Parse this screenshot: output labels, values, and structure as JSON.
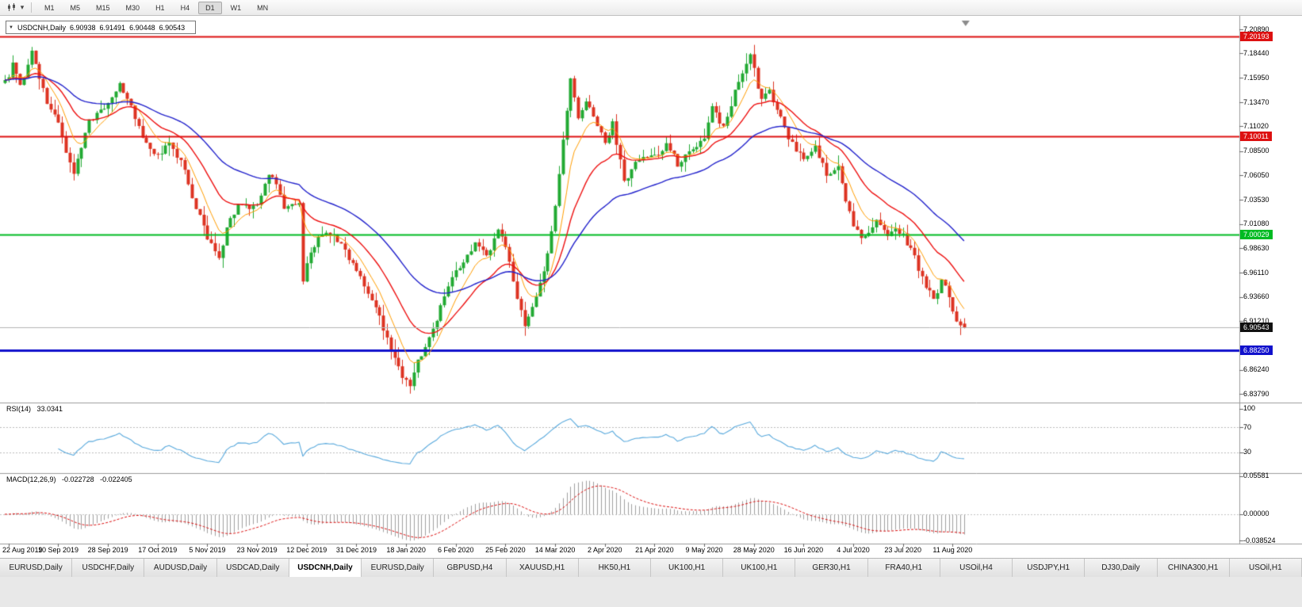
{
  "toolbar": {
    "timeframes": [
      "M1",
      "M5",
      "M15",
      "M30",
      "H1",
      "H4",
      "D1",
      "W1",
      "MN"
    ],
    "active_timeframe": "D1"
  },
  "chart": {
    "title": {
      "symbol": "USDCNH,Daily",
      "open": "6.90938",
      "high": "6.91491",
      "low": "6.90448",
      "close": "6.90543"
    },
    "price_axis": {
      "ticks": [
        "7.20890",
        "7.18440",
        "7.15950",
        "7.13470",
        "7.11020",
        "7.08500",
        "7.06050",
        "7.03530",
        "7.01080",
        "6.98630",
        "6.96110",
        "6.93660",
        "6.91210",
        "6.86240",
        "6.83790"
      ],
      "markers": [
        {
          "value": "7.20193",
          "bg": "#dd1111",
          "fg": "#ffffff"
        },
        {
          "value": "7.10011",
          "bg": "#dd1111",
          "fg": "#ffffff"
        },
        {
          "value": "7.00029",
          "bg": "#00bb22",
          "fg": "#ffffff"
        },
        {
          "value": "6.90543",
          "bg": "#111111",
          "fg": "#ffffff"
        },
        {
          "value": "6.88250",
          "bg": "#1111cc",
          "fg": "#ffffff"
        }
      ]
    },
    "time_axis": {
      "labels": [
        "22 Aug 2019",
        "10 Sep 2019",
        "28 Sep 2019",
        "17 Oct 2019",
        "5 Nov 2019",
        "23 Nov 2019",
        "12 Dec 2019",
        "31 Dec 2019",
        "18 Jan 2020",
        "6 Feb 2020",
        "25 Feb 2020",
        "14 Mar 2020",
        "2 Apr 2020",
        "21 Apr 2020",
        "9 May 2020",
        "28 May 2020",
        "16 Jun 2020",
        "4 Jul 2020",
        "23 Jul 2020",
        "11 Aug 2020"
      ],
      "first_label_candle": 1,
      "label_step": 13
    },
    "rsi_panel": {
      "label": "RSI(14)",
      "value": "33.0341",
      "scale": [
        "100",
        "70",
        "30"
      ]
    },
    "macd_panel": {
      "label": "MACD(12,26,9)",
      "value_main": "-0.022728",
      "value_signal": "-0.022405",
      "scale": [
        "0.05581",
        "0.00000",
        "-0.038524"
      ]
    }
  },
  "chart_data": {
    "type": "candlestick",
    "symbol": "USDCNH",
    "timeframe": "Daily",
    "ylim": [
      6.8379,
      7.2089
    ],
    "candle_count": 252,
    "last_candle": {
      "open": 6.90938,
      "high": 6.91491,
      "low": 6.90448,
      "close": 6.90543
    },
    "price_waypoints": [
      [
        0,
        7.155
      ],
      [
        2,
        7.172
      ],
      [
        4,
        7.15
      ],
      [
        7,
        7.188
      ],
      [
        9,
        7.16
      ],
      [
        11,
        7.135
      ],
      [
        14,
        7.115
      ],
      [
        16,
        7.08
      ],
      [
        18,
        7.065
      ],
      [
        20,
        7.09
      ],
      [
        22,
        7.115
      ],
      [
        25,
        7.125
      ],
      [
        27,
        7.135
      ],
      [
        30,
        7.151
      ],
      [
        33,
        7.13
      ],
      [
        36,
        7.1
      ],
      [
        40,
        7.08
      ],
      [
        43,
        7.094
      ],
      [
        46,
        7.075
      ],
      [
        49,
        7.04
      ],
      [
        53,
        6.995
      ],
      [
        56,
        6.978
      ],
      [
        58,
        7.005
      ],
      [
        61,
        7.03
      ],
      [
        64,
        7.025
      ],
      [
        66,
        7.032
      ],
      [
        69,
        7.062
      ],
      [
        71,
        7.05
      ],
      [
        73,
        7.028
      ],
      [
        77,
        7.035
      ],
      [
        78,
        6.955
      ],
      [
        80,
        6.982
      ],
      [
        83,
        7.002
      ],
      [
        86,
        6.998
      ],
      [
        89,
        6.985
      ],
      [
        92,
        6.962
      ],
      [
        95,
        6.94
      ],
      [
        98,
        6.915
      ],
      [
        100,
        6.895
      ],
      [
        102,
        6.872
      ],
      [
        104,
        6.855
      ],
      [
        106,
        6.848
      ],
      [
        108,
        6.87
      ],
      [
        111,
        6.895
      ],
      [
        114,
        6.925
      ],
      [
        117,
        6.955
      ],
      [
        120,
        6.975
      ],
      [
        123,
        6.992
      ],
      [
        126,
        6.978
      ],
      [
        129,
        7.002
      ],
      [
        131,
        6.988
      ],
      [
        133,
        6.952
      ],
      [
        136,
        6.905
      ],
      [
        138,
        6.928
      ],
      [
        141,
        6.962
      ],
      [
        143,
        7.0
      ],
      [
        145,
        7.065
      ],
      [
        147,
        7.125
      ],
      [
        148,
        7.158
      ],
      [
        150,
        7.115
      ],
      [
        152,
        7.135
      ],
      [
        154,
        7.12
      ],
      [
        157,
        7.096
      ],
      [
        159,
        7.112
      ],
      [
        162,
        7.055
      ],
      [
        165,
        7.072
      ],
      [
        168,
        7.082
      ],
      [
        170,
        7.078
      ],
      [
        173,
        7.092
      ],
      [
        176,
        7.072
      ],
      [
        179,
        7.085
      ],
      [
        183,
        7.1
      ],
      [
        185,
        7.132
      ],
      [
        188,
        7.108
      ],
      [
        191,
        7.145
      ],
      [
        193,
        7.165
      ],
      [
        195,
        7.186
      ],
      [
        196,
        7.168
      ],
      [
        198,
        7.135
      ],
      [
        200,
        7.148
      ],
      [
        202,
        7.128
      ],
      [
        205,
        7.098
      ],
      [
        209,
        7.076
      ],
      [
        212,
        7.088
      ],
      [
        215,
        7.062
      ],
      [
        218,
        7.07
      ],
      [
        220,
        7.035
      ],
      [
        222,
        7.006
      ],
      [
        225,
        6.996
      ],
      [
        228,
        7.012
      ],
      [
        231,
        6.996
      ],
      [
        233,
        7.006
      ],
      [
        235,
        6.998
      ],
      [
        237,
        6.986
      ],
      [
        240,
        6.956
      ],
      [
        243,
        6.932
      ],
      [
        245,
        6.952
      ],
      [
        247,
        6.938
      ],
      [
        249,
        6.912
      ],
      [
        251,
        6.90543
      ]
    ],
    "horizontal_lines": [
      {
        "price": 7.20193,
        "color": "#dd1111",
        "width": 2
      },
      {
        "price": 7.10011,
        "color": "#dd1111",
        "width": 2
      },
      {
        "price": 7.00029,
        "color": "#00bb22",
        "width": 2
      },
      {
        "price": 6.8825,
        "color": "#1111cc",
        "width": 3
      }
    ],
    "current_price_line": {
      "price": 6.90543,
      "color": "#b5b5b5"
    },
    "moving_averages": [
      {
        "period": 8,
        "color": "#ff9d00",
        "width": 1
      },
      {
        "period": 20,
        "color": "#ee1111",
        "width": 1.4
      },
      {
        "period": 45,
        "color": "#2222cc",
        "width": 1.4
      }
    ],
    "candle_up_color": "#22aa33",
    "candle_down_color": "#dd3322",
    "rsi": {
      "period": 14,
      "color": "#58a9dd",
      "levels": [
        70,
        30
      ],
      "last_value": 33.0341
    },
    "macd": {
      "fast": 12,
      "slow": 26,
      "signal_period": 9,
      "histogram_color": "#a0a0a0",
      "signal_color": "#dd1111",
      "last_values": [
        -0.022728,
        -0.022405
      ]
    }
  },
  "tabs": {
    "active_index": 4,
    "items": [
      "EURUSD,Daily",
      "USDCHF,Daily",
      "AUDUSD,Daily",
      "USDCAD,Daily",
      "USDCNH,Daily",
      "EURUSD,Daily",
      "GBPUSD,H4",
      "XAUUSD,H1",
      "HK50,H1",
      "UK100,H1",
      "UK100,H1",
      "GER30,H1",
      "FRA40,H1",
      "USOil,H4",
      "USDJPY,H1",
      "DJ30,Daily",
      "CHINA300,H1",
      "USOil,H1"
    ]
  }
}
